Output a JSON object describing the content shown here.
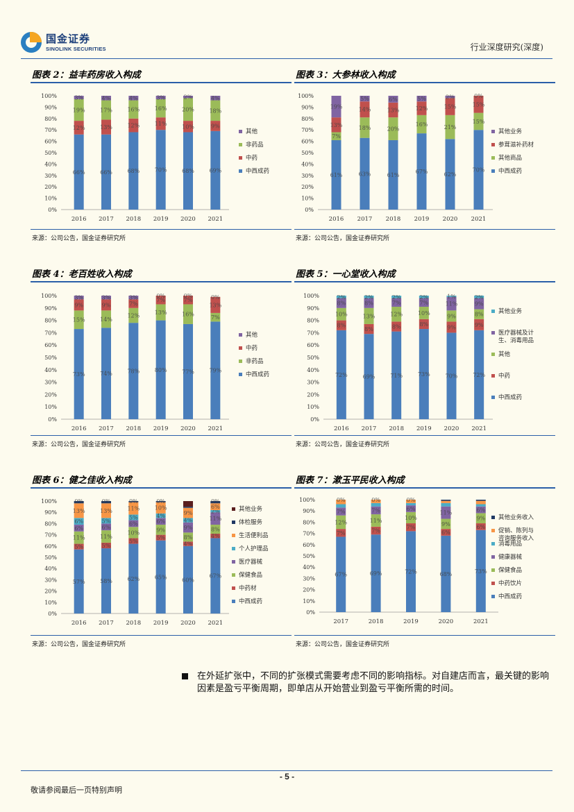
{
  "header": {
    "logo_cn": "国金证券",
    "logo_en": "SINOLINK SECURITIES",
    "report_type": "行业深度研究(深度)"
  },
  "colors": {
    "cat_main": "#4a7ebb",
    "cat_tcm": "#c0504d",
    "cat_green": "#9bbb59",
    "cat_purple": "#8064a2",
    "cat_cyan": "#4bacc6",
    "cat_orange": "#f79646",
    "cat_navy": "#1f3864",
    "cat_dark": "#5a1e1e",
    "rule": "#2a5ea8"
  },
  "panels": [
    {
      "title": "图表 2：益丰药房收入构成",
      "source": "来源：公司公告，国金证券研究所",
      "chart_data": {
        "type": "bar",
        "stacked": true,
        "categories": [
          "2016",
          "2017",
          "2018",
          "2019",
          "2020",
          "2021"
        ],
        "y_ticks": [
          "0%",
          "10%",
          "20%",
          "30%",
          "40%",
          "50%",
          "60%",
          "70%",
          "80%",
          "90%",
          "100%"
        ],
        "series": [
          {
            "name": "中西成药",
            "color": "#4a7ebb",
            "values": [
              66,
              66,
              68,
              70,
              68,
              69
            ],
            "labels": [
              "66%",
              "66%",
              "68%",
              "70%",
              "68%",
              "69%"
            ]
          },
          {
            "name": "中药",
            "color": "#c0504d",
            "values": [
              12,
              13,
              12,
              11,
              10,
              9
            ],
            "labels": [
              "12%",
              "13%",
              "12%",
              "11%",
              "10%",
              "9%"
            ]
          },
          {
            "name": "非药品",
            "color": "#9bbb59",
            "values": [
              19,
              17,
              16,
              16,
              20,
              18
            ],
            "labels": [
              "19%",
              "17%",
              "16%",
              "16%",
              "20%",
              "18%"
            ]
          },
          {
            "name": "其他",
            "color": "#8064a2",
            "values": [
              3,
              4,
              4,
              3,
              2,
              4
            ],
            "labels": [
              "3%",
              "4%",
              "4%",
              "3%",
              "2%",
              "4%"
            ]
          }
        ],
        "legend": "right"
      }
    },
    {
      "title": "图表 3：大参林收入构成",
      "source": "来源：公司公告，国金证券研究所",
      "chart_data": {
        "type": "bar",
        "stacked": true,
        "categories": [
          "2016",
          "2017",
          "2018",
          "2019",
          "2020",
          "2021"
        ],
        "y_ticks": [
          "0%",
          "10%",
          "20%",
          "30%",
          "40%",
          "50%",
          "60%",
          "70%",
          "80%",
          "90%",
          "100%"
        ],
        "series": [
          {
            "name": "中西成药",
            "color": "#4a7ebb",
            "values": [
              61,
              63,
              61,
              67,
              62,
              70
            ],
            "labels": [
              "61%",
              "63%",
              "61%",
              "67%",
              "62%",
              "70%"
            ]
          },
          {
            "name": "其他商品",
            "color": "#9bbb59",
            "values": [
              7,
              18,
              20,
              16,
              21,
              15
            ],
            "labels": [
              "7%",
              "18%",
              "20%",
              "16%",
              "21%",
              "15%"
            ]
          },
          {
            "name": "参茸滋补药材",
            "color": "#c0504d",
            "values": [
              13,
              14,
              13,
              12,
              15,
              15
            ],
            "labels": [
              "13%",
              "14%",
              "13%",
              "12%",
              "15%",
              "15%"
            ]
          },
          {
            "name": "其他业务",
            "color": "#8064a2",
            "values": [
              19,
              5,
              6,
              5,
              2,
              0
            ],
            "labels": [
              "19%",
              "5%",
              "6%",
              "5%",
              "2%",
              "0%"
            ]
          }
        ],
        "legend": "right"
      }
    },
    {
      "title": "图表 4：老百姓收入构成",
      "source": "来源：公司公告，国金证券研究所",
      "chart_data": {
        "type": "bar",
        "stacked": true,
        "categories": [
          "2016",
          "2017",
          "2018",
          "2019",
          "2020",
          "2021"
        ],
        "y_ticks": [
          "0%",
          "10%",
          "20%",
          "30%",
          "40%",
          "50%",
          "60%",
          "70%",
          "80%",
          "90%",
          "100%"
        ],
        "series": [
          {
            "name": "中西成药",
            "color": "#4a7ebb",
            "values": [
              73,
              74,
              78,
              80,
              77,
              79
            ],
            "labels": [
              "73%",
              "74%",
              "78%",
              "80%",
              "77%",
              "79%"
            ]
          },
          {
            "name": "非药品",
            "color": "#9bbb59",
            "values": [
              15,
              14,
              12,
              13,
              16,
              7
            ],
            "labels": [
              "15%",
              "14%",
              "12%",
              "13%",
              "16%",
              "7%"
            ]
          },
          {
            "name": "中药",
            "color": "#c0504d",
            "values": [
              9,
              9,
              7,
              7,
              7,
              13
            ],
            "labels": [
              "9%",
              "9%",
              "7%",
              "7%",
              "7%",
              "13%"
            ]
          },
          {
            "name": "其他",
            "color": "#8064a2",
            "values": [
              3,
              3,
              3,
              0,
              0,
              0
            ],
            "labels": [
              "3%",
              "3%",
              "3%",
              "0%",
              "0%",
              "0%"
            ]
          }
        ],
        "legend": "right"
      }
    },
    {
      "title": "图表 5：一心堂收入构成",
      "source": "来源：公司公告，国金证券研究所",
      "chart_data": {
        "type": "bar",
        "stacked": true,
        "categories": [
          "2016",
          "2017",
          "2018",
          "2019",
          "2020",
          "2021"
        ],
        "y_ticks": [
          "0%",
          "10%",
          "20%",
          "30%",
          "40%",
          "50%",
          "60%",
          "70%",
          "80%",
          "90%",
          "100%"
        ],
        "series": [
          {
            "name": "中西成药",
            "color": "#4a7ebb",
            "values": [
              72,
              69,
              71,
              73,
              70,
              72
            ],
            "labels": [
              "72%",
              "69%",
              "71%",
              "73%",
              "70%",
              "72%"
            ]
          },
          {
            "name": "中药",
            "color": "#c0504d",
            "values": [
              8,
              8,
              8,
              8,
              9,
              9
            ],
            "labels": [
              "8%",
              "8%",
              "8%",
              "8%",
              "9%",
              "9%"
            ]
          },
          {
            "name": "其他",
            "color": "#9bbb59",
            "values": [
              10,
              13,
              12,
              10,
              9,
              8
            ],
            "labels": [
              "10%",
              "13%",
              "12%",
              "10%",
              "9%",
              "8%"
            ]
          },
          {
            "name": "医疗器械及计生、消毒用品",
            "color": "#8064a2",
            "values": [
              8,
              8,
              7,
              7,
              11,
              9
            ],
            "labels": [
              "8%",
              "8%",
              "7%",
              "7%",
              "11%",
              "9%"
            ]
          },
          {
            "name": "其他业务",
            "color": "#4bacc6",
            "values": [
              2,
              2,
              2,
              2,
              1,
              2
            ],
            "labels": [
              "2%",
              "2%",
              "2%",
              "2%",
              "1%",
              "2%"
            ]
          }
        ],
        "legend": "right"
      }
    },
    {
      "title": "图表 6：健之佳收入构成",
      "source": "来源：公司公告，国金证券研究所",
      "chart_data": {
        "type": "bar",
        "stacked": true,
        "categories": [
          "2016",
          "2017",
          "2018",
          "2019",
          "2020",
          "2021"
        ],
        "y_ticks": [
          "0%",
          "10%",
          "20%",
          "30%",
          "40%",
          "50%",
          "60%",
          "70%",
          "80%",
          "90%",
          "100%"
        ],
        "series": [
          {
            "name": "中西成药",
            "color": "#4a7ebb",
            "values": [
              57,
              58,
              62,
              65,
              60,
              67
            ],
            "labels": [
              "57%",
              "58%",
              "62%",
              "65%",
              "60%",
              "67%"
            ]
          },
          {
            "name": "中药材",
            "color": "#c0504d",
            "values": [
              5,
              5,
              5,
              5,
              4,
              4
            ],
            "labels": [
              "5%",
              "5%",
              "5%",
              "5%",
              "4%",
              "4%"
            ]
          },
          {
            "name": "保健食品",
            "color": "#9bbb59",
            "values": [
              11,
              11,
              10,
              9,
              8,
              8
            ],
            "labels": [
              "11%",
              "11%",
              "10%",
              "9%",
              "8%",
              "8%"
            ]
          },
          {
            "name": "医疗器械",
            "color": "#8064a2",
            "values": [
              6,
              6,
              6,
              6,
              9,
              11
            ],
            "labels": [
              "6%",
              "6%",
              "6%",
              "6%",
              "9%",
              "11%"
            ]
          },
          {
            "name": "个人护理品",
            "color": "#4bacc6",
            "values": [
              6,
              5,
              5,
              4,
              4,
              2
            ],
            "labels": [
              "6%",
              "5%",
              "5%",
              "4%",
              "4%",
              "2%"
            ]
          },
          {
            "name": "生活便利品",
            "color": "#f79646",
            "values": [
              13,
              13,
              11,
              10,
              9,
              6
            ],
            "labels": [
              "13%",
              "13%",
              "11%",
              "10%",
              "9%",
              "6%"
            ]
          },
          {
            "name": "体检服务",
            "color": "#1f3864",
            "values": [
              2,
              2,
              1,
              1,
              1,
              2
            ],
            "labels": [
              "",
              "",
              "",
              "",
              "",
              ""
            ]
          },
          {
            "name": "其他业务",
            "color": "#5a1e1e",
            "values": [
              0,
              0,
              0,
              0,
              5,
              0
            ],
            "labels": [
              "0%",
              "0%",
              "0%",
              "0%",
              "",
              "0%"
            ]
          }
        ],
        "legend": "right"
      }
    },
    {
      "title": "图表 7：漱玉平民收入构成",
      "source": "来源：公司公告，国金证券研究所",
      "chart_data": {
        "type": "bar",
        "stacked": true,
        "categories": [
          "2017",
          "2018",
          "2019",
          "2020",
          "2021"
        ],
        "y_ticks": [
          "0%",
          "10%",
          "20%",
          "30%",
          "40%",
          "50%",
          "60%",
          "70%",
          "80%",
          "90%",
          "100%"
        ],
        "series": [
          {
            "name": "中西成药",
            "color": "#4a7ebb",
            "values": [
              67,
              69,
              72,
              68,
              73
            ],
            "labels": [
              "67%",
              "69%",
              "72%",
              "68%",
              "73%"
            ]
          },
          {
            "name": "中药饮片",
            "color": "#c0504d",
            "values": [
              7,
              7,
              7,
              6,
              6
            ],
            "labels": [
              "7%",
              "7%",
              "7%",
              "6%",
              "6%"
            ]
          },
          {
            "name": "保健食品",
            "color": "#9bbb59",
            "values": [
              12,
              11,
              10,
              9,
              9
            ],
            "labels": [
              "12%",
              "11%",
              "10%",
              "9%",
              "9%"
            ]
          },
          {
            "name": "健康器械",
            "color": "#8064a2",
            "values": [
              7,
              7,
              6,
              11,
              6
            ],
            "labels": [
              "7%",
              "7%",
              "6%",
              "11%",
              "6%"
            ]
          },
          {
            "name": "消毒用品",
            "color": "#4bacc6",
            "values": [
              3,
              3,
              2,
              3,
              2
            ],
            "labels": [
              "",
              "",
              "",
              "",
              ""
            ]
          },
          {
            "name": "促销、陈列与咨询服务收入",
            "color": "#f79646",
            "values": [
              4,
              3,
              3,
              2,
              3
            ],
            "labels": [
              "",
              "",
              "",
              "",
              ""
            ]
          },
          {
            "name": "其他业务收入",
            "color": "#1f3864",
            "values": [
              0,
              0,
              0,
              1,
              1
            ],
            "labels": [
              "0%",
              "0%",
              "0%",
              "",
              ""
            ]
          }
        ],
        "legend": "right"
      }
    }
  ],
  "body": {
    "paragraph": "在外延扩张中，不同的扩张模式需要考虑不同的影响指标。对自建店而言，最关键的影响因素是盈亏平衡周期，即单店从开始营业到盈亏平衡所需的时间。"
  },
  "footer": {
    "page_number": "- 5 -",
    "note": "敬请参阅最后一页特别声明"
  }
}
